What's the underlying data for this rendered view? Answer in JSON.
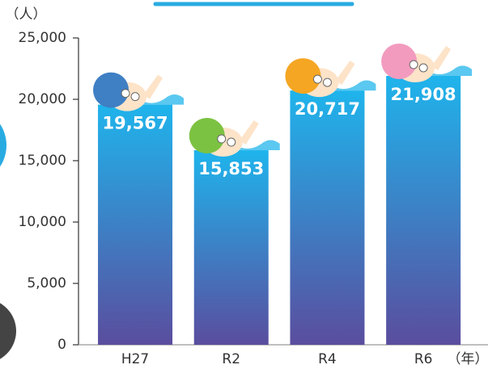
{
  "chart_data": {
    "type": "bar",
    "y_unit": "（人）",
    "x_unit": "（年）",
    "categories": [
      "H27",
      "R2",
      "R4",
      "R6"
    ],
    "values": [
      19567,
      15853,
      20717,
      21908
    ],
    "value_labels": [
      "19,567",
      "15,853",
      "20,717",
      "21,908"
    ],
    "color": [
      "#1fb4ec",
      "#5a4d9e"
    ],
    "ylim": [
      0,
      25000
    ],
    "yticks": [
      0,
      {
        "value": 5000,
        "label": "5,000"
      },
      {
        "value": 10000,
        "label": "10,000"
      },
      {
        "value": 15000,
        "label": "15,000"
      },
      {
        "value": 20000,
        "label": "20,000"
      },
      {
        "value": 25000,
        "label": "25,000"
      }
    ],
    "grid": false
  }
}
